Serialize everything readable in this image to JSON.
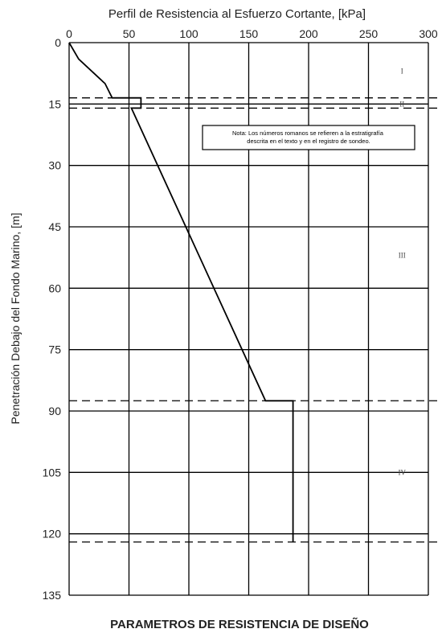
{
  "chart_data": {
    "type": "line",
    "title": "Perfil de Resistencia al Esfuerzo Cortante, [kPa]",
    "subtitle": "PARAMETROS DE RESISTENCIA DE DISEÑO",
    "xlabel": "",
    "ylabel": "Penetración Debajo del Fondo Marino, [m]",
    "xlim": [
      0,
      300
    ],
    "ylim": [
      0,
      135
    ],
    "y_inverted": true,
    "x_ticks": [
      "0",
      "50",
      "100",
      "150",
      "200",
      "250",
      "300"
    ],
    "y_ticks": [
      "0",
      "15",
      "30",
      "45",
      "60",
      "75",
      "90",
      "105",
      "120",
      "135"
    ],
    "grid": true,
    "series": [
      {
        "x": [
          0,
          8,
          30,
          36,
          60,
          60,
          52,
          164,
          187,
          187
        ],
        "y": [
          0,
          4,
          10,
          13.5,
          13.5,
          16,
          16,
          87.5,
          87.5,
          122
        ]
      }
    ],
    "layer_boundaries_m": [
      13.5,
      16,
      87.5,
      122
    ],
    "layer_labels": [
      {
        "text": "I",
        "x": 278,
        "y": 7
      },
      {
        "text": "II",
        "x": 278,
        "y": 15
      },
      {
        "text": "III",
        "x": 278,
        "y": 52
      },
      {
        "text": "IV",
        "x": 278,
        "y": 105
      }
    ],
    "note": "Nota: Los números romanos se refieren a la estratigrafía descrita en el texto y en el registro de sondeo."
  }
}
